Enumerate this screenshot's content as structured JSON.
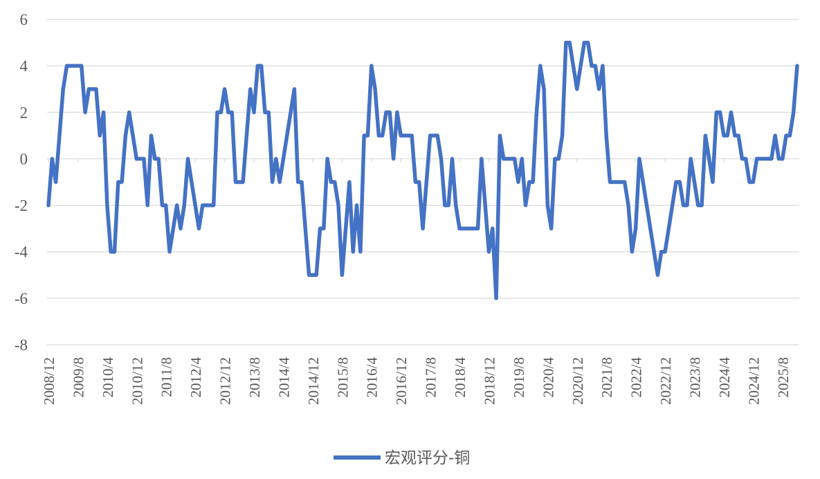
{
  "chart_data": {
    "type": "line",
    "title": "",
    "xlabel": "",
    "ylabel": "",
    "ylim": [
      -8,
      6
    ],
    "yticks": [
      -8,
      -6,
      -4,
      -2,
      0,
      2,
      4,
      6
    ],
    "grid": true,
    "legend_position": "bottom",
    "xtick_labels": [
      "2008/12",
      "2009/8",
      "2010/4",
      "2010/12",
      "2011/8",
      "2012/4",
      "2012/12",
      "2013/8",
      "2014/4",
      "2014/12",
      "2015/8",
      "2016/4",
      "2016/12",
      "2017/8",
      "2018/4",
      "2018/12",
      "2019/8",
      "2020/4",
      "2020/12",
      "2021/8",
      "2022/4",
      "2022/12",
      "2023/8",
      "2024/4",
      "2024/12",
      "2025/8"
    ],
    "series": [
      {
        "name": "宏观评分-铜",
        "color": "#4472C4",
        "start": "2008/12",
        "values": [
          -2,
          0,
          -1,
          1,
          3,
          4,
          4,
          4,
          4,
          4,
          2,
          3,
          3,
          3,
          1,
          2,
          -2,
          -4,
          -4,
          -1,
          -1,
          1,
          2,
          1,
          0,
          0,
          0,
          -2,
          1,
          0,
          0,
          -2,
          -2,
          -4,
          -3,
          -2,
          -3,
          -2,
          0,
          -1,
          -2,
          -3,
          -2,
          -2,
          -2,
          -2,
          2,
          2,
          3,
          2,
          2,
          -1,
          -1,
          -1,
          1,
          3,
          2,
          4,
          4,
          2,
          2,
          -1,
          0,
          -1,
          0,
          1,
          2,
          3,
          -1,
          -1,
          -3,
          -5,
          -5,
          -5,
          -3,
          -3,
          0,
          -1,
          -1,
          -2,
          -5,
          -3,
          -1,
          -4,
          -2,
          -4,
          1,
          1,
          4,
          3,
          1,
          1,
          2,
          2,
          0,
          2,
          1,
          1,
          1,
          1,
          -1,
          -1,
          -3,
          -1,
          1,
          1,
          1,
          0,
          -2,
          -2,
          0,
          -2,
          -3,
          -3,
          -3,
          -3,
          -3,
          -3,
          0,
          -2,
          -4,
          -3,
          -6,
          1,
          0,
          0,
          0,
          0,
          -1,
          0,
          -2,
          -1,
          -1,
          2,
          4,
          3,
          -2,
          -3,
          0,
          0,
          1,
          5,
          5,
          4,
          3,
          4,
          5,
          5,
          4,
          4,
          3,
          4,
          1,
          -1,
          -1,
          -1,
          -1,
          -1,
          -2,
          -4,
          -3,
          0,
          -1,
          -2,
          -3,
          -4,
          -5,
          -4,
          -4,
          -3,
          -2,
          -1,
          -1,
          -2,
          -2,
          0,
          -1,
          -2,
          -2,
          1,
          0,
          -1,
          2,
          2,
          1,
          1,
          2,
          1,
          1,
          0,
          0,
          -1,
          -1,
          0,
          0,
          0,
          0,
          0,
          1,
          0,
          0,
          1,
          1,
          2,
          4
        ]
      }
    ]
  }
}
